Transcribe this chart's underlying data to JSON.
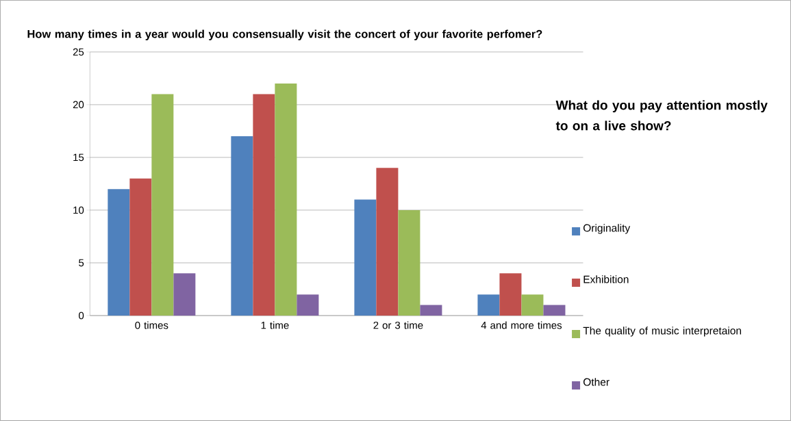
{
  "chart_data": {
    "type": "bar",
    "title": "How many times in a year would you consensually visit the concert of your favorite perfomer?",
    "legend_title": "What do you pay attention mostly to on a live show?",
    "categories": [
      "0 times",
      "1 time",
      "2 or 3 time",
      "4 and more times"
    ],
    "series": [
      {
        "name": "Originality",
        "color": "#4f81bd",
        "values": [
          12,
          17,
          11,
          2
        ]
      },
      {
        "name": "Exhibition",
        "color": "#c0504d",
        "values": [
          13,
          21,
          14,
          4
        ]
      },
      {
        "name": "The quality of music interpretaion",
        "color": "#9bbb59",
        "values": [
          21,
          22,
          10,
          2
        ]
      },
      {
        "name": "Other",
        "color": "#8064a2",
        "values": [
          4,
          2,
          1,
          1
        ]
      }
    ],
    "ylim": [
      0,
      25
    ],
    "yticks": [
      0,
      5,
      10,
      15,
      20,
      25
    ],
    "grid": "y",
    "legend": "right"
  }
}
